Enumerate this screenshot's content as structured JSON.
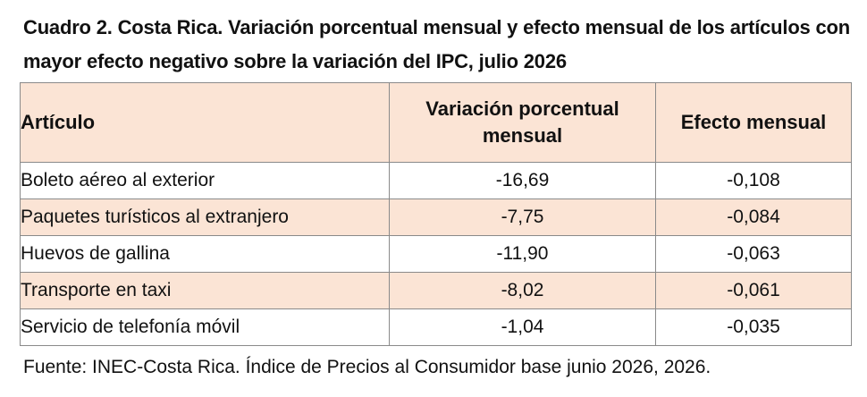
{
  "title": "Cuadro 2. Costa Rica. Variación porcentual mensual y efecto mensual de los artículos con mayor efecto negativo sobre la variación del IPC, julio 2026",
  "table": {
    "headers": [
      "Artículo",
      "Variación porcentual mensual",
      "Efecto mensual"
    ],
    "rows": [
      [
        "Boleto aéreo al exterior",
        "-16,69",
        "-0,108"
      ],
      [
        "Paquetes turísticos al extranjero",
        "-7,75",
        "-0,084"
      ],
      [
        "Huevos de gallina",
        "-11,90",
        "-0,063"
      ],
      [
        "Transporte en taxi",
        "-8,02",
        "-0,061"
      ],
      [
        "Servicio de telefonía móvil",
        "-1,04",
        "-0,035"
      ]
    ]
  },
  "source": "Fuente: INEC-Costa Rica. Índice de Precios al Consumidor base junio 2026, 2026.",
  "colors": {
    "header_bg": "#fbe4d5",
    "alt_row_bg": "#fbe4d5",
    "border": "#8a8a8a"
  }
}
